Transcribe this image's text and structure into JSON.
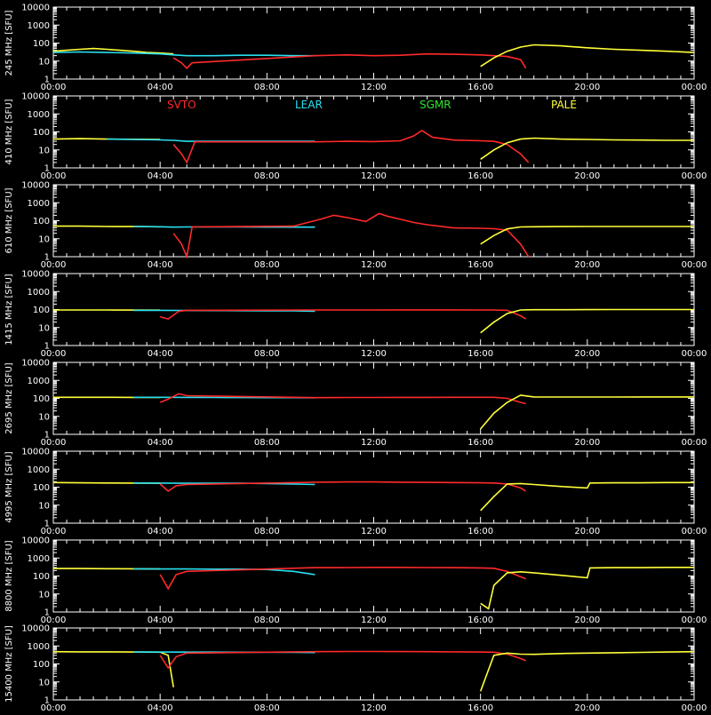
{
  "colors": {
    "background": "#000000",
    "axes": "#ffffff",
    "SVTO": "#ff2a2a",
    "LEAR": "#29e0f0",
    "SGMR": "#2ee62e",
    "PALE": "#ffff3a"
  },
  "chart_data": {
    "type": "line",
    "layout": "8 stacked panels sharing x-axis",
    "xlim": [
      "00:00",
      "24:00"
    ],
    "x_tick_labels": [
      "00:00",
      "04:00",
      "08:00",
      "12:00",
      "16:00",
      "20:00",
      "00:00"
    ],
    "y_scale": "log",
    "ylim": [
      1,
      10000
    ],
    "y_tick_labels": [
      "1",
      "10",
      "100",
      "1000",
      "10000"
    ],
    "legend": {
      "placement": "top row of panel 2",
      "entries": [
        {
          "label": "SVTO",
          "color": "#ff2a2a"
        },
        {
          "label": "LEAR",
          "color": "#29e0f0"
        },
        {
          "label": "SGMR",
          "color": "#2ee62e"
        },
        {
          "label": "PALE",
          "color": "#ffff3a"
        }
      ]
    },
    "panels": [
      {
        "ylabel": "245 MHz [SFU]",
        "series": [
          {
            "name": "PALE",
            "x": [
              0.0,
              0.5,
              1.0,
              1.5,
              2.0,
              2.5,
              3.0,
              3.5,
              4.0,
              4.5
            ],
            "y": [
              35,
              40,
              45,
              50,
              45,
              40,
              35,
              30,
              28,
              25
            ]
          },
          {
            "name": "LEAR",
            "x": [
              0.0,
              1.0,
              2.0,
              3.0,
              4.0,
              4.5,
              5.0,
              6.0,
              7.0,
              8.0,
              9.0,
              9.8
            ],
            "y": [
              30,
              32,
              30,
              28,
              25,
              22,
              20,
              20,
              21,
              21,
              20,
              20
            ]
          },
          {
            "name": "SVTO",
            "x": [
              4.5,
              4.8,
              5.0,
              5.2,
              9.8,
              11.0,
              12.0,
              13.0,
              14.0,
              15.0,
              16.0,
              16.5,
              17.0,
              17.5,
              17.7
            ],
            "y": [
              15,
              8,
              4,
              8,
              20,
              22,
              20,
              21,
              25,
              24,
              22,
              20,
              18,
              12,
              4
            ]
          },
          {
            "name": "PALE",
            "x": [
              16.0,
              16.5,
              17.0,
              17.5,
              18.0,
              19.0,
              20.0,
              21.0,
              22.0,
              23.0,
              24.0
            ],
            "y": [
              5,
              15,
              35,
              60,
              80,
              70,
              55,
              45,
              40,
              35,
              30
            ]
          }
        ]
      },
      {
        "ylabel": "410 MHz [SFU]",
        "series": [
          {
            "name": "PALE",
            "x": [
              0.0,
              1.0,
              2.0,
              3.0,
              4.0
            ],
            "y": [
              40,
              42,
              40,
              39,
              38
            ]
          },
          {
            "name": "LEAR",
            "x": [
              2.0,
              3.0,
              4.0,
              4.5,
              5.0,
              6.0,
              7.0,
              8.0,
              9.0,
              9.8
            ],
            "y": [
              40,
              38,
              36,
              34,
              30,
              30,
              30,
              30,
              30,
              30
            ]
          },
          {
            "name": "SVTO",
            "x": [
              4.5,
              4.8,
              5.0,
              5.3,
              9.8,
              11.0,
              12.0,
              13.0,
              13.5,
              13.8,
              14.2,
              15.0,
              16.0,
              16.5,
              17.0,
              17.5,
              17.8
            ],
            "y": [
              20,
              6,
              2,
              28,
              28,
              30,
              29,
              32,
              60,
              120,
              50,
              35,
              32,
              30,
              20,
              6,
              2
            ]
          },
          {
            "name": "PALE",
            "x": [
              16.0,
              16.5,
              17.0,
              17.5,
              18.0,
              19.0,
              20.0,
              21.0,
              22.0,
              23.0,
              24.0
            ],
            "y": [
              3,
              10,
              25,
              40,
              45,
              40,
              38,
              36,
              35,
              34,
              34
            ]
          }
        ]
      },
      {
        "ylabel": "610 MHz [SFU]",
        "series": [
          {
            "name": "PALE",
            "x": [
              0.0,
              1.0,
              2.0,
              3.0,
              4.0
            ],
            "y": [
              50,
              50,
              48,
              47,
              46
            ]
          },
          {
            "name": "LEAR",
            "x": [
              3.0,
              4.0,
              4.5,
              5.0,
              6.0,
              7.0,
              8.0,
              9.0,
              9.8
            ],
            "y": [
              48,
              46,
              44,
              45,
              45,
              45,
              44,
              44,
              44
            ]
          },
          {
            "name": "SVTO",
            "x": [
              4.5,
              4.8,
              5.0,
              5.2,
              9.0,
              10.0,
              10.5,
              11.0,
              11.7,
              12.2,
              12.5,
              13.0,
              13.5,
              14.0,
              15.0,
              16.0,
              16.5,
              17.0,
              17.5,
              17.8
            ],
            "y": [
              20,
              5,
              1,
              45,
              50,
              120,
              200,
              150,
              90,
              250,
              180,
              120,
              80,
              60,
              40,
              38,
              36,
              30,
              5,
              1
            ]
          },
          {
            "name": "PALE",
            "x": [
              16.0,
              16.5,
              17.0,
              17.5,
              18.0,
              19.0,
              20.0,
              21.0,
              22.0,
              23.0,
              24.0
            ],
            "y": [
              5,
              15,
              35,
              45,
              46,
              47,
              48,
              48,
              48,
              48,
              48
            ]
          }
        ]
      },
      {
        "ylabel": "1415 MHz [SFU]",
        "series": [
          {
            "name": "PALE",
            "x": [
              0.0,
              1.0,
              2.0,
              3.0,
              4.0
            ],
            "y": [
              95,
              95,
              94,
              93,
              92
            ]
          },
          {
            "name": "LEAR",
            "x": [
              3.0,
              4.0,
              5.0,
              6.0,
              7.0,
              8.0,
              9.0,
              9.8
            ],
            "y": [
              90,
              90,
              88,
              87,
              86,
              85,
              84,
              80
            ]
          },
          {
            "name": "SVTO",
            "x": [
              4.0,
              4.3,
              4.7,
              5.0,
              9.8,
              11.0,
              12.0,
              13.0,
              14.0,
              15.0,
              16.0,
              16.5,
              17.0,
              17.5,
              17.7
            ],
            "y": [
              40,
              30,
              80,
              90,
              95,
              95,
              95,
              96,
              96,
              96,
              95,
              94,
              90,
              45,
              30
            ]
          },
          {
            "name": "PALE",
            "x": [
              16.0,
              16.5,
              17.0,
              17.5,
              18.0,
              19.0,
              20.0,
              21.0,
              22.0,
              23.0,
              24.0
            ],
            "y": [
              5,
              20,
              60,
              95,
              98,
              98,
              99,
              100,
              100,
              100,
              100
            ]
          }
        ]
      },
      {
        "ylabel": "2695 MHz [SFU]",
        "series": [
          {
            "name": "PALE",
            "x": [
              0.0,
              1.0,
              2.0,
              3.0,
              4.0
            ],
            "y": [
              115,
              115,
              114,
              113,
              112
            ]
          },
          {
            "name": "LEAR",
            "x": [
              3.0,
              4.0,
              5.0,
              6.0,
              7.0,
              8.0,
              9.0,
              9.8
            ],
            "y": [
              115,
              115,
              113,
              112,
              111,
              110,
              109,
              108
            ]
          },
          {
            "name": "SVTO",
            "x": [
              4.0,
              4.3,
              4.7,
              5.0,
              9.8,
              11.0,
              12.0,
              13.0,
              14.0,
              15.0,
              16.0,
              16.5,
              17.0,
              17.5,
              17.7
            ],
            "y": [
              60,
              90,
              180,
              140,
              110,
              112,
              112,
              113,
              113,
              114,
              114,
              115,
              100,
              60,
              50
            ]
          },
          {
            "name": "PALE",
            "x": [
              16.0,
              16.5,
              17.0,
              17.5,
              18.0,
              19.0,
              20.0,
              21.0,
              22.0,
              23.0,
              24.0
            ],
            "y": [
              2,
              15,
              60,
              150,
              120,
              118,
              118,
              118,
              120,
              120,
              120
            ]
          }
        ]
      },
      {
        "ylabel": "4995 MHz [SFU]",
        "series": [
          {
            "name": "PALE",
            "x": [
              0.0,
              1.0,
              2.0,
              3.0,
              4.0
            ],
            "y": [
              180,
              175,
              170,
              168,
              165
            ]
          },
          {
            "name": "LEAR",
            "x": [
              3.0,
              4.0,
              5.0,
              6.0,
              7.0,
              8.0,
              9.0,
              9.8
            ],
            "y": [
              170,
              168,
              165,
              165,
              165,
              160,
              150,
              140
            ]
          },
          {
            "name": "SVTO",
            "x": [
              4.0,
              4.3,
              4.6,
              5.0,
              9.8,
              11.0,
              12.0,
              13.0,
              14.0,
              15.0,
              16.0,
              16.5,
              17.0,
              17.5,
              17.7
            ],
            "y": [
              150,
              60,
              120,
              140,
              190,
              195,
              195,
              190,
              185,
              180,
              175,
              170,
              150,
              90,
              60
            ]
          },
          {
            "name": "PALE",
            "x": [
              16.0,
              16.5,
              17.0,
              17.5,
              18.0,
              19.0,
              20.0,
              20.1,
              21.0,
              22.0,
              23.0,
              24.0
            ],
            "y": [
              5,
              30,
              150,
              160,
              140,
              110,
              90,
              170,
              175,
              175,
              180,
              180
            ]
          }
        ]
      },
      {
        "ylabel": "8800 MHz [SFU]",
        "series": [
          {
            "name": "PALE",
            "x": [
              0.0,
              1.0,
              2.0,
              3.0,
              4.0
            ],
            "y": [
              260,
              260,
              255,
              250,
              245
            ]
          },
          {
            "name": "LEAR",
            "x": [
              3.0,
              4.0,
              5.0,
              6.0,
              7.0,
              8.0,
              9.0,
              9.8
            ],
            "y": [
              250,
              245,
              245,
              240,
              240,
              230,
              180,
              120
            ]
          },
          {
            "name": "SVTO",
            "x": [
              4.0,
              4.3,
              4.6,
              5.0,
              9.8,
              11.0,
              12.0,
              13.0,
              14.0,
              15.0,
              16.0,
              16.5,
              17.0,
              17.5,
              17.7
            ],
            "y": [
              120,
              20,
              120,
              180,
              290,
              295,
              300,
              300,
              295,
              290,
              280,
              270,
              180,
              90,
              70
            ]
          },
          {
            "name": "PALE",
            "x": [
              16.0,
              16.3,
              16.5,
              17.0,
              17.5,
              18.0,
              19.0,
              20.0,
              20.1,
              21.0,
              22.0,
              23.0,
              24.0
            ],
            "y": [
              3,
              1.5,
              30,
              150,
              170,
              150,
              110,
              80,
              280,
              290,
              290,
              300,
              300
            ]
          }
        ]
      },
      {
        "ylabel": "15400 MHz [SFU]",
        "series": [
          {
            "name": "PALE",
            "x": [
              0.0,
              1.0,
              2.0,
              3.0,
              4.0,
              4.3,
              4.5
            ],
            "y": [
              480,
              470,
              470,
              460,
              450,
              300,
              5
            ]
          },
          {
            "name": "LEAR",
            "x": [
              3.0,
              4.0,
              5.0,
              6.0,
              7.0,
              8.0,
              9.0,
              9.8
            ],
            "y": [
              460,
              460,
              455,
              455,
              450,
              450,
              440,
              430
            ]
          },
          {
            "name": "SVTO",
            "x": [
              4.0,
              4.3,
              4.6,
              5.0,
              9.8,
              11.0,
              12.0,
              13.0,
              14.0,
              15.0,
              16.0,
              16.5,
              17.0,
              17.5,
              17.7
            ],
            "y": [
              300,
              60,
              250,
              400,
              480,
              490,
              490,
              485,
              480,
              470,
              460,
              450,
              350,
              200,
              150
            ]
          },
          {
            "name": "PALE",
            "x": [
              16.0,
              16.5,
              17.0,
              17.5,
              18.0,
              19.0,
              20.0,
              21.0,
              22.0,
              23.0,
              24.0
            ],
            "y": [
              3,
              300,
              400,
              350,
              340,
              380,
              400,
              420,
              440,
              460,
              480
            ]
          }
        ]
      }
    ]
  }
}
